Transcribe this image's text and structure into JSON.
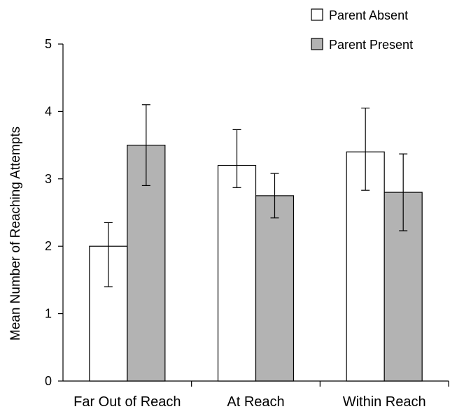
{
  "chart_data": {
    "type": "bar",
    "categories": [
      "Far Out of Reach",
      "At Reach",
      "Within Reach"
    ],
    "series": [
      {
        "name": "Parent Absent",
        "values": [
          2.0,
          3.2,
          3.4
        ],
        "error_low": [
          1.4,
          2.87,
          2.83
        ],
        "error_high": [
          2.35,
          3.73,
          4.05
        ],
        "color": "#ffffff"
      },
      {
        "name": "Parent Present",
        "values": [
          3.5,
          2.75,
          2.8
        ],
        "error_low": [
          2.9,
          2.42,
          2.23
        ],
        "error_high": [
          4.1,
          3.08,
          3.37
        ],
        "color": "#b3b3b3"
      }
    ],
    "title": "",
    "xlabel": "",
    "ylabel": "Mean Number of Reaching Attempts",
    "ylim": [
      0,
      5
    ],
    "yticks": [
      "0",
      "1",
      "2",
      "3",
      "4",
      "5"
    ],
    "grid": false,
    "legend_position": "top-right"
  }
}
